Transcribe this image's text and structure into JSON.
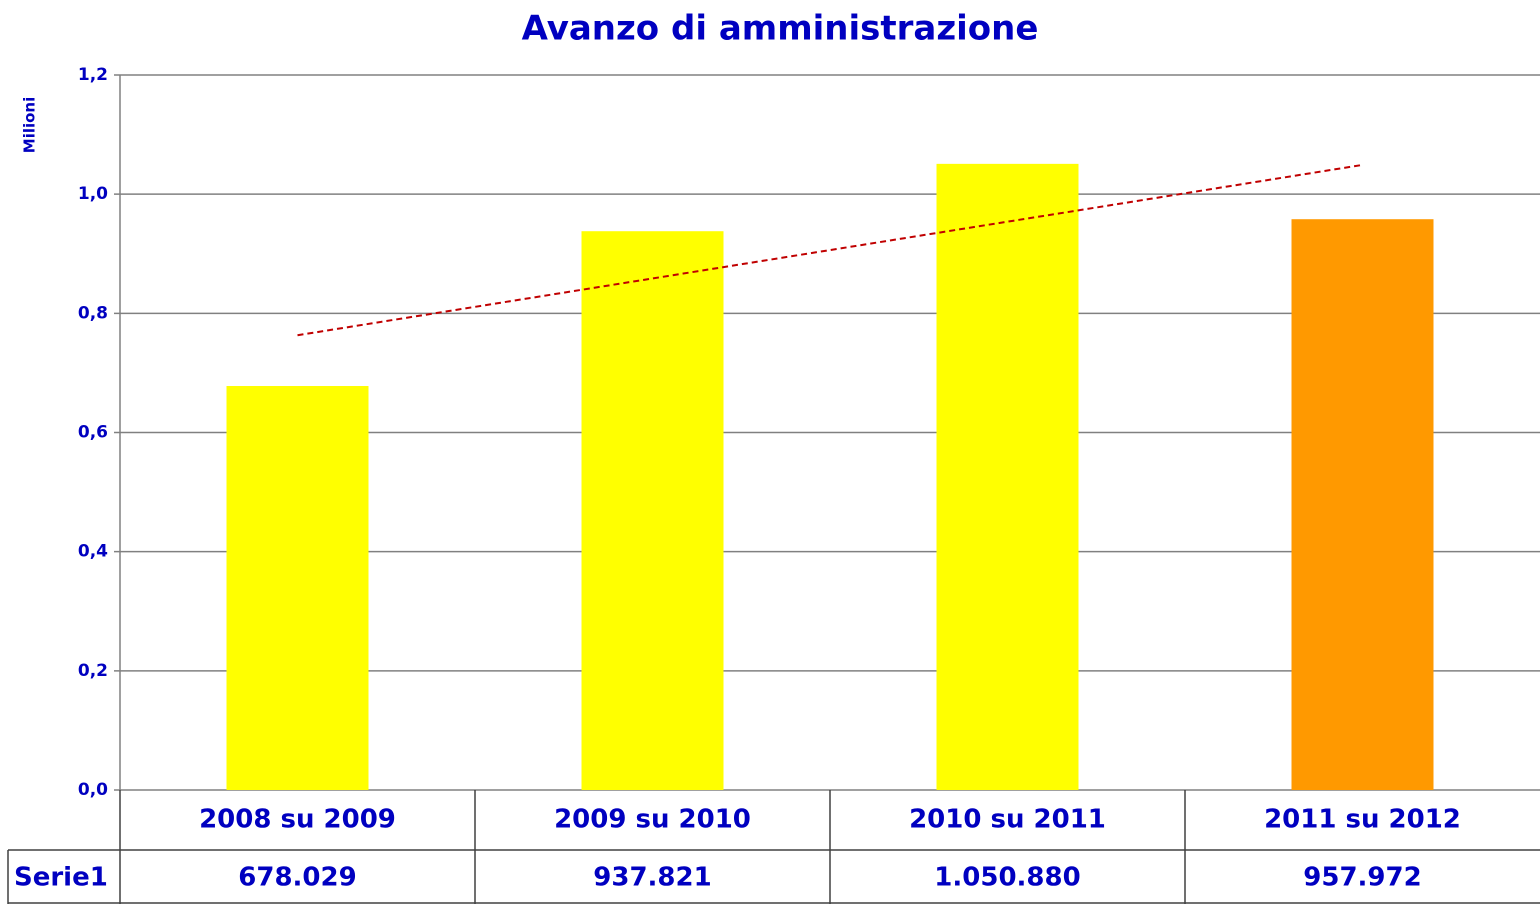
{
  "chart_data": {
    "type": "bar",
    "title": "Avanzo di amministrazione",
    "y_label": "Milioni",
    "categories": [
      "2008 su 2009",
      "2009 su 2010",
      "2010 su 2011",
      "2011 su 2012"
    ],
    "series": [
      {
        "name": "Serie1",
        "colors": [
          "#ffff00",
          "#ffff00",
          "#ffff00",
          "#ff9900"
        ],
        "values": [
          0.678029,
          0.937821,
          1.05088,
          0.957972
        ],
        "value_labels": [
          "678.029",
          "937.821",
          "1.050.880",
          "957.972"
        ]
      }
    ],
    "trendline": {
      "type": "linear",
      "color": "#c00000"
    },
    "ylim": [
      0,
      1.2
    ],
    "yticks": [
      {
        "value": 0,
        "label": "0,0"
      },
      {
        "value": 0.2,
        "label": "0,2"
      },
      {
        "value": 0.4,
        "label": "0,4"
      },
      {
        "value": 0.6,
        "label": "0,6"
      },
      {
        "value": 0.8,
        "label": "0,8"
      },
      {
        "value": 1.0,
        "label": "1,0"
      },
      {
        "value": 1.2,
        "label": "1,2"
      }
    ],
    "grid": true,
    "data_table": true
  }
}
